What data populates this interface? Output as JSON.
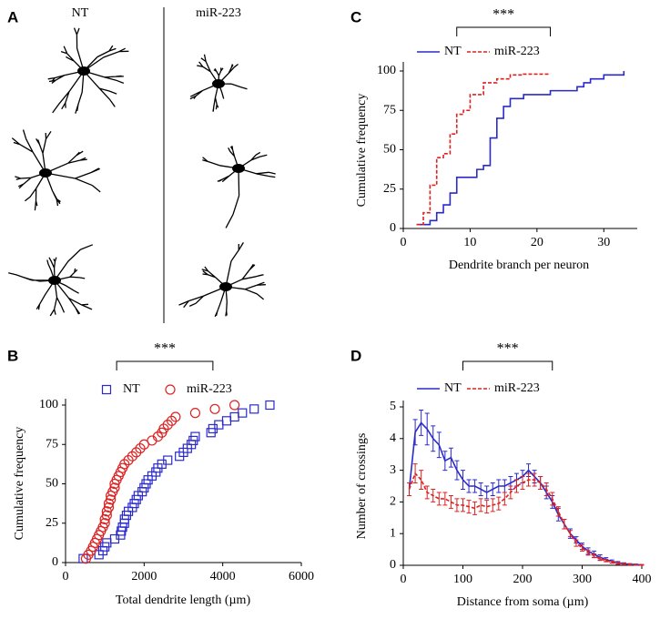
{
  "panel_a": {
    "label": "A",
    "groups": [
      "NT",
      "miR-223"
    ]
  },
  "chart_data": [
    {
      "label": "B",
      "type": "scatter",
      "xlabel": "Total dendrite length (µm)",
      "ylabel": "Cumulative frequency",
      "xlim": [
        0,
        6000
      ],
      "xticks": [
        0,
        2000,
        4000,
        6000
      ],
      "ylim": [
        0,
        100
      ],
      "yticks": [
        0,
        25,
        50,
        75,
        100
      ],
      "annotation": {
        "text": "***",
        "x": [
          1300,
          3750
        ]
      },
      "series": [
        {
          "name": "NT",
          "color": "#2a2acc",
          "marker": "square",
          "x": [
            450,
            850,
            950,
            1000,
            1050,
            1250,
            1400,
            1420,
            1450,
            1500,
            1500,
            1550,
            1600,
            1700,
            1750,
            1800,
            1850,
            1950,
            2000,
            2050,
            2100,
            2200,
            2300,
            2350,
            2450,
            2600,
            2900,
            3000,
            3100,
            3200,
            3250,
            3300,
            3700,
            3750,
            3900,
            4100,
            4300,
            4500,
            4800,
            5200
          ],
          "values": [
            2.5,
            5,
            7.5,
            10,
            12.5,
            15,
            17.5,
            20,
            22.5,
            25,
            27.5,
            30,
            32.5,
            35,
            37.5,
            40,
            42.5,
            45,
            47.5,
            50,
            52.5,
            55,
            57.5,
            60,
            62.5,
            65,
            67.5,
            70,
            72.5,
            75,
            77.5,
            80,
            82.5,
            85,
            87.5,
            90,
            92.5,
            95,
            97.5,
            100
          ]
        },
        {
          "name": "miR-223",
          "color": "#dd2222",
          "marker": "circle",
          "x": [
            520,
            580,
            650,
            700,
            750,
            800,
            850,
            900,
            950,
            1000,
            1000,
            1050,
            1050,
            1100,
            1100,
            1150,
            1150,
            1200,
            1250,
            1250,
            1300,
            1350,
            1400,
            1450,
            1500,
            1600,
            1700,
            1800,
            1900,
            2000,
            2200,
            2350,
            2450,
            2500,
            2600,
            2700,
            2800,
            3300,
            3800,
            4300
          ],
          "values": [
            2.5,
            5,
            7.5,
            10,
            12.5,
            15,
            17.5,
            20,
            22.5,
            25,
            27.5,
            30,
            32.5,
            35,
            37.5,
            40,
            42.5,
            45,
            47.5,
            50,
            52.5,
            55,
            57.5,
            60,
            62.5,
            65,
            67.5,
            70,
            72.5,
            75,
            77.5,
            80,
            82.5,
            85,
            87.5,
            90,
            92.5,
            95,
            97.5,
            100
          ]
        }
      ]
    },
    {
      "label": "C",
      "type": "line",
      "step": true,
      "xlabel": "Dendrite branch per neuron",
      "ylabel": "Cumulative frequency",
      "xlim": [
        0,
        35
      ],
      "xticks": [
        0,
        10,
        20,
        30
      ],
      "ylim": [
        0,
        100
      ],
      "yticks": [
        0,
        25,
        50,
        75,
        100
      ],
      "annotation": {
        "text": "***",
        "x": [
          8,
          22
        ]
      },
      "series": [
        {
          "name": "NT",
          "color": "#2a2acc",
          "dashed": false,
          "x": [
            2,
            4,
            5,
            6,
            7,
            8,
            10,
            11,
            12,
            13,
            14,
            15,
            16,
            18,
            22,
            26,
            27,
            28,
            30,
            33
          ],
          "values": [
            2.5,
            5,
            10,
            15,
            22.5,
            32.5,
            32.5,
            37.5,
            40,
            57.5,
            70,
            77.5,
            82.5,
            85,
            87.5,
            90,
            92.5,
            95,
            97.5,
            100
          ]
        },
        {
          "name": "miR-223",
          "color": "#dd2222",
          "dashed": true,
          "x": [
            2,
            3,
            4,
            5,
            6,
            7,
            8,
            9,
            10,
            12,
            14,
            16,
            18,
            22
          ],
          "values": [
            2.5,
            10,
            27.5,
            45,
            47.5,
            60,
            72.5,
            75,
            85,
            92.5,
            95,
            97.5,
            98,
            98
          ]
        }
      ]
    },
    {
      "label": "D",
      "type": "line",
      "step": false,
      "xlabel": "Distance from soma (µm)",
      "ylabel": "Number of crossings",
      "xlim": [
        0,
        400
      ],
      "xticks": [
        0,
        100,
        200,
        300,
        400
      ],
      "ylim": [
        0,
        5
      ],
      "yticks": [
        0,
        1,
        2,
        3,
        4,
        5
      ],
      "annotation": {
        "text": "***",
        "x": [
          100,
          250
        ]
      },
      "series": [
        {
          "name": "NT",
          "color": "#2a2acc",
          "dashed": false,
          "x": [
            10,
            20,
            30,
            40,
            50,
            60,
            70,
            80,
            90,
            100,
            110,
            120,
            130,
            140,
            150,
            160,
            170,
            180,
            190,
            200,
            210,
            220,
            230,
            240,
            250,
            260,
            270,
            280,
            290,
            300,
            310,
            320,
            330,
            340,
            350,
            360,
            370,
            380,
            390,
            400
          ],
          "values": [
            2.4,
            4.2,
            4.5,
            4.3,
            4.0,
            3.8,
            3.3,
            3.4,
            3.0,
            2.7,
            2.5,
            2.5,
            2.4,
            2.3,
            2.4,
            2.5,
            2.5,
            2.6,
            2.7,
            2.8,
            3.0,
            2.8,
            2.6,
            2.3,
            2.0,
            1.6,
            1.3,
            1.0,
            0.8,
            0.6,
            0.45,
            0.35,
            0.25,
            0.18,
            0.12,
            0.08,
            0.05,
            0.03,
            0.02,
            0.01
          ],
          "errors": [
            0.2,
            0.4,
            0.4,
            0.5,
            0.4,
            0.4,
            0.3,
            0.3,
            0.3,
            0.3,
            0.2,
            0.2,
            0.2,
            0.2,
            0.2,
            0.2,
            0.2,
            0.2,
            0.2,
            0.2,
            0.2,
            0.2,
            0.2,
            0.2,
            0.2,
            0.2,
            0.15,
            0.15,
            0.1,
            0.1,
            0.1,
            0.1,
            0.08,
            0.06,
            0.05,
            0.04,
            0.03,
            0.02,
            0.02,
            0.01
          ]
        },
        {
          "name": "miR-223",
          "color": "#dd2222",
          "dashed": true,
          "x": [
            10,
            20,
            30,
            40,
            50,
            60,
            70,
            80,
            90,
            100,
            110,
            120,
            130,
            140,
            150,
            160,
            170,
            180,
            190,
            200,
            210,
            220,
            230,
            240,
            250,
            260,
            270,
            280,
            290,
            300,
            310,
            320,
            330,
            340,
            350,
            360,
            370,
            380,
            390,
            400
          ],
          "values": [
            2.4,
            2.9,
            2.7,
            2.3,
            2.2,
            2.1,
            2.1,
            2.0,
            1.9,
            1.9,
            1.85,
            1.8,
            1.9,
            1.85,
            1.9,
            1.95,
            2.1,
            2.3,
            2.5,
            2.6,
            2.7,
            2.7,
            2.6,
            2.4,
            2.1,
            1.7,
            1.3,
            1.0,
            0.7,
            0.55,
            0.4,
            0.3,
            0.2,
            0.15,
            0.1,
            0.06,
            0.04,
            0.03,
            0.02,
            0.01
          ],
          "errors": [
            0.2,
            0.3,
            0.3,
            0.2,
            0.2,
            0.2,
            0.2,
            0.2,
            0.2,
            0.2,
            0.2,
            0.2,
            0.2,
            0.2,
            0.2,
            0.2,
            0.2,
            0.2,
            0.2,
            0.2,
            0.2,
            0.2,
            0.2,
            0.2,
            0.2,
            0.15,
            0.15,
            0.1,
            0.1,
            0.1,
            0.08,
            0.06,
            0.05,
            0.04,
            0.03,
            0.03,
            0.02,
            0.02,
            0.01,
            0.01
          ]
        }
      ]
    }
  ]
}
